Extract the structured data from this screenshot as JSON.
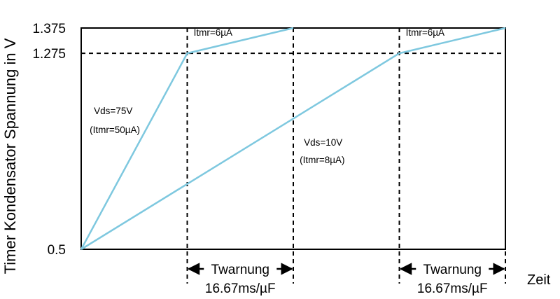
{
  "chart_data": {
    "type": "line",
    "ylabel": "Timer Kondensator Spannung in V",
    "xlabel": "Zeit",
    "ylim": [
      0.5,
      1.375
    ],
    "xlim": [
      0,
      2
    ],
    "yticks": [
      "0.5",
      "1.275",
      "1.375"
    ],
    "series": [
      {
        "x": [
          0,
          0.5,
          1.0
        ],
        "y": [
          0.5,
          1.275,
          1.375
        ]
      },
      {
        "x": [
          0,
          1.5,
          2.0
        ],
        "y": [
          0.5,
          1.275,
          1.375
        ]
      }
    ],
    "colors": {
      "series": "#7ec8df",
      "axis": "#000000",
      "guides": "#000000"
    },
    "grid": false,
    "annotations": [
      {
        "text": "Vds=75V",
        "x": 0.06,
        "y": 1.035
      },
      {
        "text": "(Itmr=50µA)",
        "x": 0.04,
        "y": 0.96
      },
      {
        "text": "Itmr=6µA",
        "x": 0.53,
        "y": 1.345
      },
      {
        "text": "Vds=10V",
        "x": 1.05,
        "y": 0.91
      },
      {
        "text": "(Itmr=8µA)",
        "x": 1.03,
        "y": 0.84
      },
      {
        "text": "Itmr=6µA",
        "x": 1.53,
        "y": 1.345
      }
    ],
    "spans": [
      {
        "from": 0.5,
        "to": 1.0,
        "label": "Twarnung",
        "sublabel": "16.67ms/µF"
      },
      {
        "from": 1.5,
        "to": 2.0,
        "label": "Twarnung",
        "sublabel": "16.67ms/µF"
      }
    ]
  }
}
